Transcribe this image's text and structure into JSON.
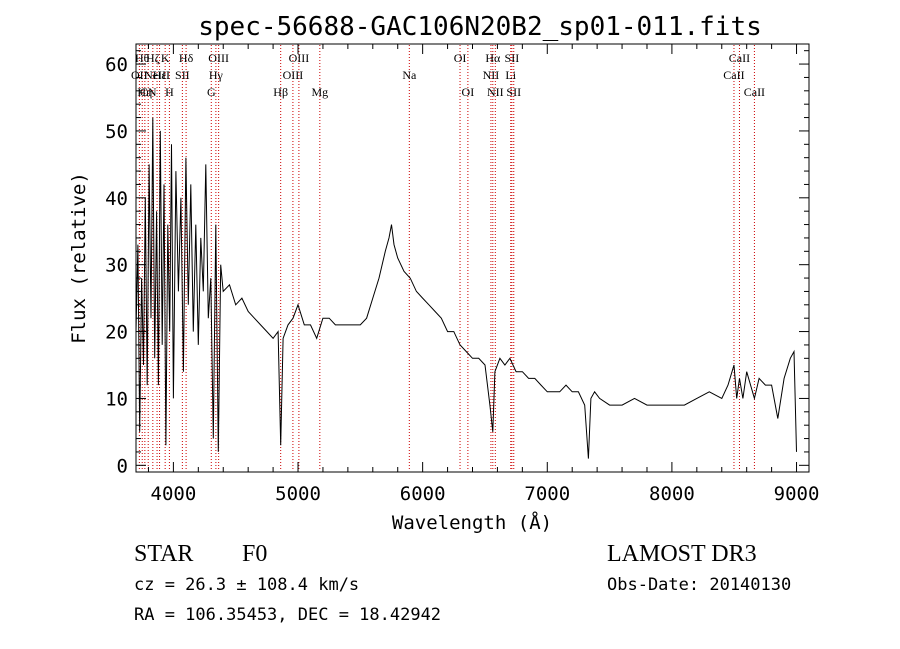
{
  "chart_data": {
    "type": "line",
    "title": "spec-56688-GAC106N20B2_sp01-011.fits",
    "xlabel": "Wavelength (Å)",
    "ylabel": "Flux (relative)",
    "xlim": [
      3700,
      9100
    ],
    "ylim": [
      -1,
      63
    ],
    "xticks": [
      4000,
      5000,
      6000,
      7000,
      8000,
      9000
    ],
    "yticks": [
      0,
      10,
      20,
      30,
      40,
      50,
      60
    ],
    "grid": false,
    "line_color": "#000000",
    "marker_color": "#cc0000",
    "series": [
      {
        "x": [
          3700,
          3715,
          3730,
          3745,
          3760,
          3775,
          3790,
          3805,
          3820,
          3835,
          3850,
          3865,
          3880,
          3895,
          3910,
          3925,
          3940,
          3955,
          3970,
          3985,
          4000,
          4020,
          4040,
          4060,
          4080,
          4100,
          4120,
          4140,
          4160,
          4180,
          4200,
          4220,
          4240,
          4260,
          4280,
          4300,
          4320,
          4340,
          4360,
          4380,
          4400,
          4450,
          4500,
          4550,
          4600,
          4650,
          4700,
          4750,
          4800,
          4840,
          4861,
          4880,
          4920,
          4960,
          5000,
          5050,
          5100,
          5150,
          5200,
          5250,
          5300,
          5350,
          5400,
          5450,
          5500,
          5550,
          5600,
          5650,
          5700,
          5730,
          5750,
          5770,
          5800,
          5850,
          5900,
          5950,
          6000,
          6050,
          6100,
          6150,
          6200,
          6250,
          6300,
          6350,
          6400,
          6450,
          6500,
          6540,
          6563,
          6580,
          6620,
          6660,
          6700,
          6750,
          6800,
          6850,
          6900,
          6950,
          7000,
          7050,
          7100,
          7150,
          7200,
          7250,
          7300,
          7330,
          7350,
          7380,
          7420,
          7500,
          7600,
          7700,
          7800,
          7900,
          8000,
          8100,
          8200,
          8300,
          8400,
          8450,
          8498,
          8520,
          8542,
          8570,
          8600,
          8662,
          8700,
          8750,
          8800,
          8850,
          8900,
          8950,
          8980,
          9000
        ],
        "y": [
          20,
          33,
          5,
          28,
          15,
          40,
          12,
          45,
          22,
          52,
          16,
          38,
          12,
          50,
          18,
          42,
          3,
          36,
          20,
          48,
          10,
          44,
          26,
          40,
          14,
          46,
          24,
          42,
          20,
          36,
          18,
          34,
          26,
          45,
          22,
          28,
          4,
          36,
          2,
          30,
          26,
          27,
          24,
          25,
          23,
          22,
          21,
          20,
          19,
          20,
          3,
          19,
          21,
          22,
          24,
          21,
          21,
          19,
          22,
          22,
          21,
          21,
          21,
          21,
          21,
          22,
          25,
          28,
          32,
          34,
          36,
          33,
          31,
          29,
          28,
          26,
          25,
          24,
          23,
          22,
          20,
          20,
          18,
          17,
          16,
          16,
          15,
          9,
          5,
          14,
          16,
          15,
          16,
          14,
          14,
          13,
          13,
          12,
          11,
          11,
          11,
          12,
          11,
          11,
          9,
          1,
          10,
          11,
          10,
          9,
          9,
          10,
          9,
          9,
          9,
          9,
          10,
          11,
          10,
          12,
          15,
          10,
          13,
          10,
          14,
          10,
          13,
          12,
          12,
          7,
          13,
          16,
          17,
          2
        ]
      }
    ],
    "line_markers": [
      {
        "x": 3727,
        "label": "OII",
        "row": 2
      },
      {
        "x": 3750,
        "label": "Hθ",
        "row": 1
      },
      {
        "x": 3771,
        "label": "Hη",
        "row": 3
      },
      {
        "x": 3798,
        "label": "CN",
        "row": 3
      },
      {
        "x": 3835,
        "label": "Hζ",
        "row": 1
      },
      {
        "x": 3869,
        "label": "NeIII",
        "row": 2
      },
      {
        "x": 3889,
        "label": "Hε",
        "row": 2
      },
      {
        "x": 3934,
        "label": "K",
        "row": 1
      },
      {
        "x": 3968,
        "label": "H",
        "row": 3
      },
      {
        "x": 4072,
        "label": "SII",
        "row": 2
      },
      {
        "x": 4102,
        "label": "Hδ",
        "row": 1
      },
      {
        "x": 4304,
        "label": "G",
        "row": 3
      },
      {
        "x": 4341,
        "label": "Hγ",
        "row": 2
      },
      {
        "x": 4363,
        "label": "OIII",
        "row": 1
      },
      {
        "x": 4861,
        "label": "Hβ",
        "row": 3
      },
      {
        "x": 4959,
        "label": "OIII",
        "row": 2
      },
      {
        "x": 5007,
        "label": "OIII",
        "row": 1
      },
      {
        "x": 5175,
        "label": "Mg",
        "row": 3
      },
      {
        "x": 5893,
        "label": "Na",
        "row": 2
      },
      {
        "x": 6300,
        "label": "OI",
        "row": 1
      },
      {
        "x": 6363,
        "label": "OI",
        "row": 3
      },
      {
        "x": 6548,
        "label": "NII",
        "row": 2
      },
      {
        "x": 6563,
        "label": "Hα",
        "row": 1
      },
      {
        "x": 6583,
        "label": "NII",
        "row": 3
      },
      {
        "x": 6707,
        "label": "Li",
        "row": 2
      },
      {
        "x": 6716,
        "label": "SII",
        "row": 1
      },
      {
        "x": 6731,
        "label": "SII",
        "row": 3
      },
      {
        "x": 8498,
        "label": "CaII",
        "row": 2
      },
      {
        "x": 8542,
        "label": "CaII",
        "row": 1
      },
      {
        "x": 8662,
        "label": "CaII",
        "row": 3
      }
    ]
  },
  "info": {
    "object_class": "STAR",
    "subclass": "F0",
    "survey": "LAMOST DR3",
    "cz": "cz = 26.3 ± 108.4 km/s",
    "obs_date": "Obs-Date: 20140130",
    "coords": "RA = 106.35453, DEC =  18.42942"
  }
}
